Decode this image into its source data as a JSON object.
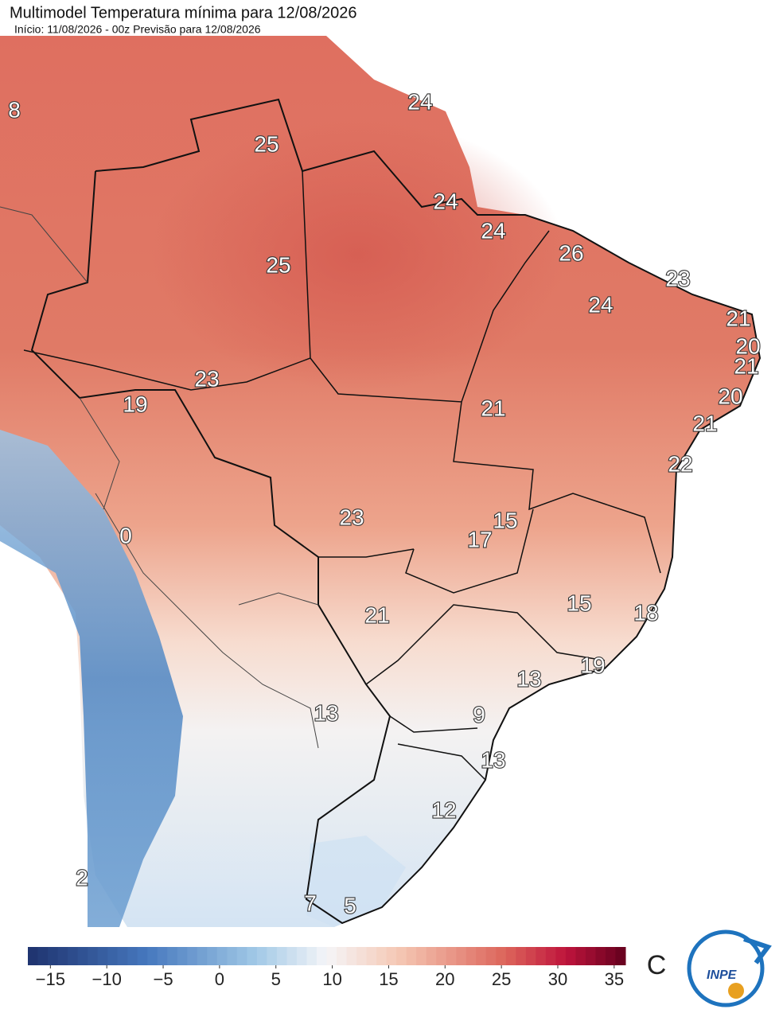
{
  "header": {
    "title": "Multimodel Temperatura mínima para 12/08/2026",
    "subtitle": "Início: 11/08/2026 - 00z  Previsão para 12/08/2026"
  },
  "map_labels": [
    8,
    25,
    24,
    24,
    24,
    25,
    26,
    23,
    24,
    21,
    20,
    21,
    20,
    21,
    22,
    21,
    19,
    23,
    23,
    15,
    17,
    0,
    21,
    15,
    18,
    19,
    13,
    13,
    9,
    13,
    12,
    2,
    7,
    5
  ],
  "colorbar": {
    "lim": [
      -17,
      36
    ],
    "ticks": [
      {
        "value": -15,
        "label": "−15"
      },
      {
        "value": -10,
        "label": "−10"
      },
      {
        "value": -5,
        "label": "−5"
      },
      0,
      5,
      10,
      15,
      20,
      25,
      30,
      35
    ],
    "unit": "C"
  },
  "logo": {
    "text": "INPE"
  }
}
